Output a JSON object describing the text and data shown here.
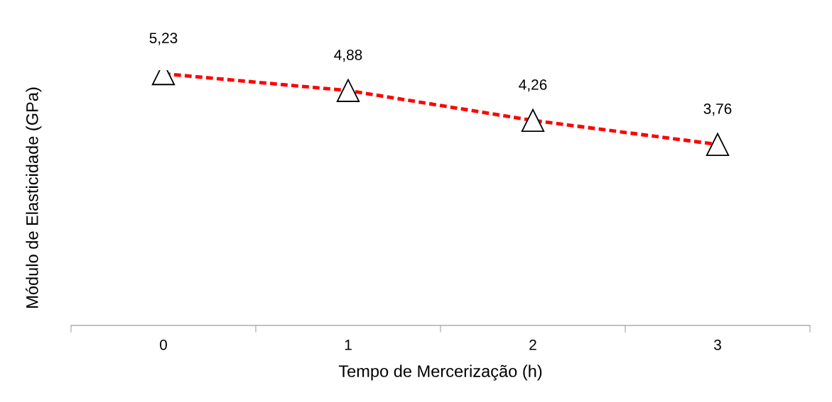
{
  "chart_data": {
    "type": "line",
    "xlabel": "Tempo de Mercerização (h)",
    "ylabel": "Módulo de Elasticidade (GPa)",
    "categories": [
      "0",
      "1",
      "2",
      "3"
    ],
    "series": [
      {
        "color": "#ff0000",
        "values": [
          5.23,
          4.88,
          4.26,
          3.76
        ],
        "value_labels": [
          "5,23",
          "4,88",
          "4,26",
          "3,76"
        ],
        "marker": "triangle",
        "line_style": "dashed"
      }
    ],
    "grid": false,
    "legend": false
  }
}
